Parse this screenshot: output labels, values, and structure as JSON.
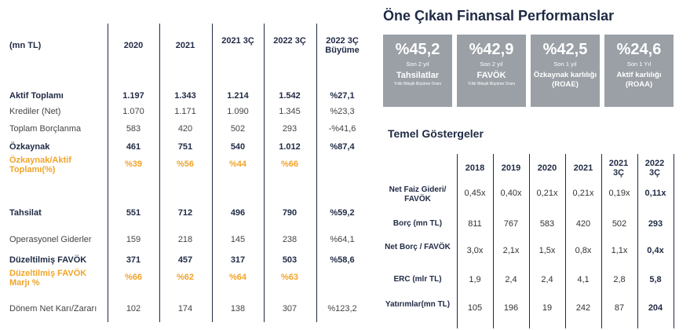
{
  "left_table": {
    "unit_label": "(mn TL)",
    "headers": [
      "2020",
      "2021",
      "2021 3Ç",
      "2022 3Ç",
      "2022 3Ç Büyüme"
    ],
    "rows": [
      {
        "label": "Aktif Toplamı",
        "values": [
          "1.197",
          "1.343",
          "1.214",
          "1.542",
          "%27,1"
        ],
        "style": "bold"
      },
      {
        "label": "Krediler (Net)",
        "values": [
          "1.070",
          "1.171",
          "1.090",
          "1.345",
          "%23,3"
        ],
        "style": "normal"
      },
      {
        "label": "Toplam Borçlanma",
        "values": [
          "583",
          "420",
          "502",
          "293",
          "-%41,6"
        ],
        "style": "normal"
      },
      {
        "label": "Özkaynak",
        "values": [
          "461",
          "751",
          "540",
          "1.012",
          "%87,4"
        ],
        "style": "bold"
      },
      {
        "label": "Özkaynak/Aktif Toplamı(%)",
        "values": [
          "%39",
          "%56",
          "%44",
          "%66",
          ""
        ],
        "style": "orange"
      },
      {
        "label": "Tahsilat",
        "values": [
          "551",
          "712",
          "496",
          "790",
          "%59,2"
        ],
        "style": "bold"
      },
      {
        "label": "Operasyonel Giderler",
        "values": [
          "159",
          "218",
          "145",
          "238",
          "%64,1"
        ],
        "style": "normal"
      },
      {
        "label": "Düzeltilmiş FAVÖK",
        "values": [
          "371",
          "457",
          "317",
          "503",
          "%58,6"
        ],
        "style": "bold"
      },
      {
        "label": "Düzeltilmiş FAVÖK Marjı %",
        "values": [
          "%66",
          "%62",
          "%64",
          "%63",
          ""
        ],
        "style": "orange"
      },
      {
        "label": "Dönem Net Karı/Zararı",
        "values": [
          "102",
          "174",
          "138",
          "307",
          "%123,2"
        ],
        "style": "normal"
      }
    ]
  },
  "performance": {
    "title": "Öne Çıkan Finansal Performanslar",
    "cards": [
      {
        "value": "%45,2",
        "period": "Son 2 yıl",
        "name": "Tahsilatlar",
        "note": "Yıllık Bileşik Büyüme Oranı"
      },
      {
        "value": "%42,9",
        "period": "Son 2 yıl",
        "name": "FAVÖK",
        "note": "Yıllık Bileşik Büyüme Oranı"
      },
      {
        "value": "%42,5",
        "period": "Son 1 yıl",
        "name": "Özkaynak karlılığı (ROAE)",
        "note": ""
      },
      {
        "value": "%24,6",
        "period": "Son 1 Yıl",
        "name": "Aktif karlılığı (ROAA)",
        "note": ""
      }
    ]
  },
  "indicators": {
    "title": "Temel Göstergeler",
    "headers": [
      "2018",
      "2019",
      "2020",
      "2021",
      "2021 3Ç",
      "2022 3Ç"
    ],
    "rows": [
      {
        "label": "Net Faiz Gideri/ FAVÖK",
        "values": [
          "0,45x",
          "0,40x",
          "0,21x",
          "0,21x",
          "0,19x",
          "0,11x"
        ]
      },
      {
        "label": "Borç (mn TL)",
        "values": [
          "811",
          "767",
          "583",
          "420",
          "502",
          "293"
        ]
      },
      {
        "label": "Net Borç / FAVÖK",
        "values": [
          "3,0x",
          "2,1x",
          "1,5x",
          "0,8x",
          "1,1x",
          "0,4x"
        ]
      },
      {
        "label": "ERC (mlr TL)",
        "values": [
          "1,9",
          "2,4",
          "2,4",
          "4,1",
          "2,8",
          "5,8"
        ]
      },
      {
        "label": "Yatırımlar(mn TL)",
        "values": [
          "105",
          "196",
          "19",
          "242",
          "87",
          "204"
        ]
      }
    ]
  }
}
